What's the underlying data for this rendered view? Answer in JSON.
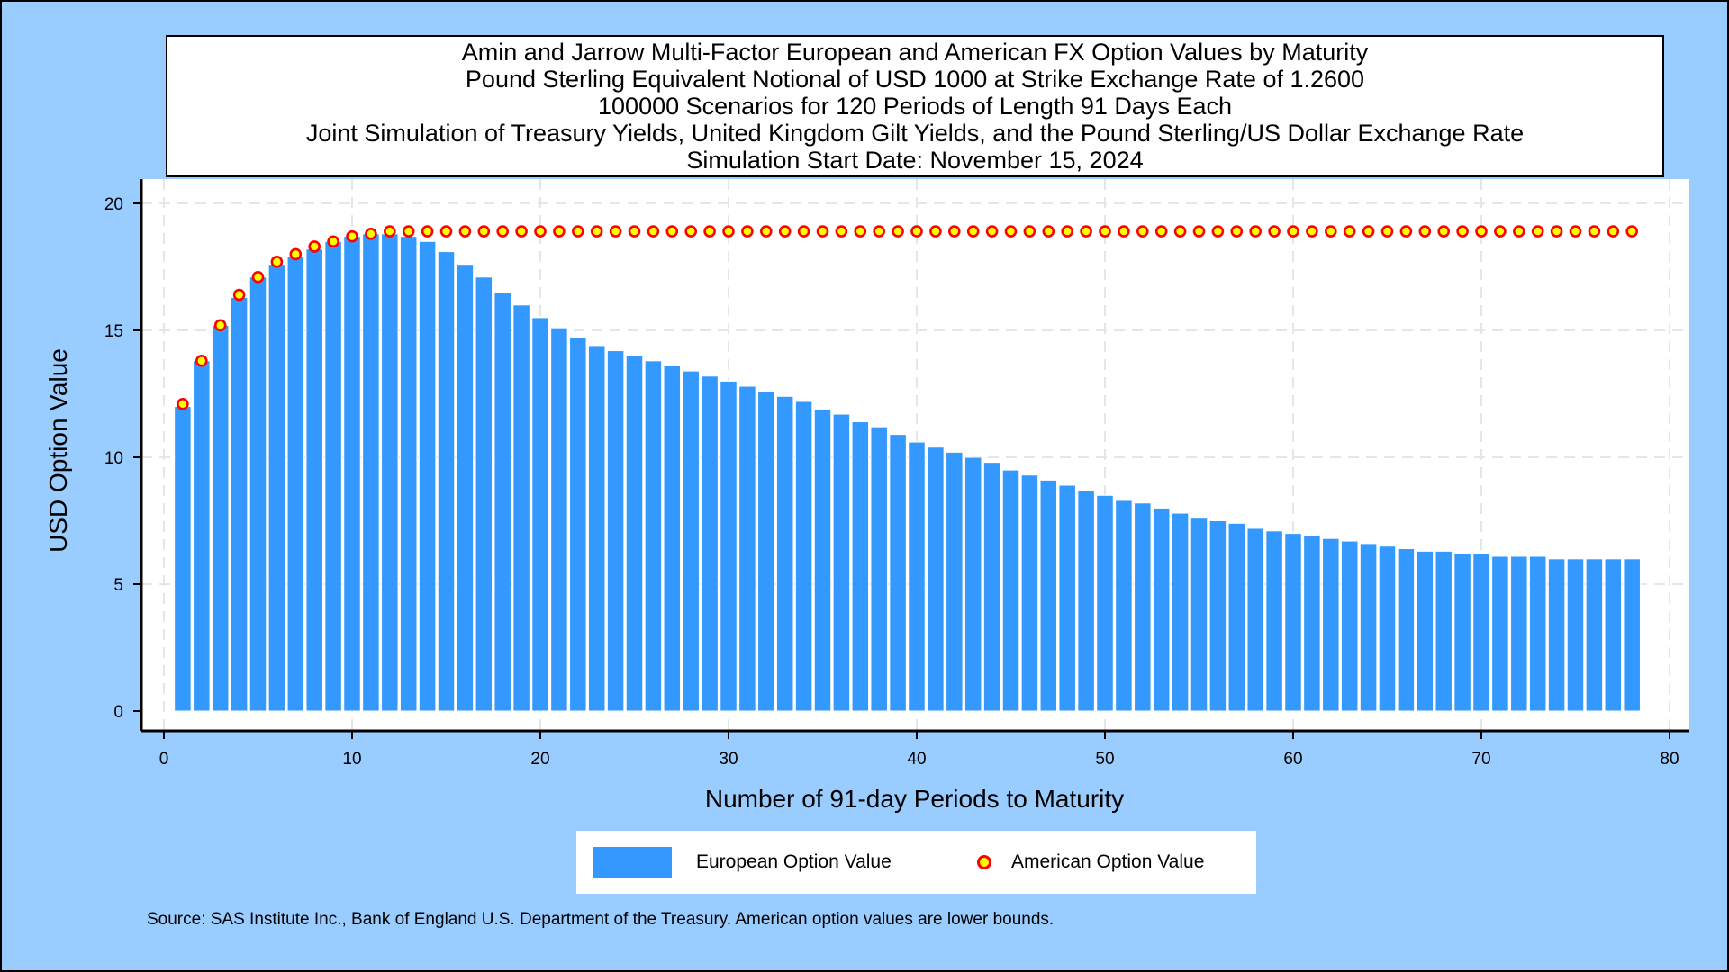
{
  "title_lines": [
    "Amin and Jarrow Multi-Factor European and American FX Option Values by Maturity",
    "Pound Sterling Equivalent Notional of USD 1000 at Strike Exchange Rate of  1.2600",
    "100000 Scenarios for 120 Periods of Length 91 Days Each",
    "Joint Simulation of Treasury Yields, United Kingdom Gilt Yields, and the Pound Sterling/US Dollar Exchange Rate",
    "Simulation Start Date: November 15, 2024"
  ],
  "legend": {
    "european": "European Option Value",
    "american": "American Option Value"
  },
  "footnote": "Source: SAS Institute Inc., Bank of England U.S. Department of the Treasury. American option values are lower bounds.",
  "colors": {
    "background": "#99CCFF",
    "bar": "#3399FF",
    "marker_fill": "#FFFF00",
    "marker_edge": "#FF0000",
    "grid": "#E6E6E6"
  },
  "chart_data": {
    "type": "bar",
    "xlabel": "Number of 91-day Periods to Maturity",
    "ylabel": "USD Option Value",
    "xlim": [
      0,
      80
    ],
    "ylim": [
      0,
      20
    ],
    "x_ticks": [
      0,
      10,
      20,
      30,
      40,
      50,
      60,
      70,
      80
    ],
    "y_ticks": [
      0,
      5,
      10,
      15,
      20
    ],
    "grid": true,
    "legend_position": "bottom",
    "x": [
      1,
      2,
      3,
      4,
      5,
      6,
      7,
      8,
      9,
      10,
      11,
      12,
      13,
      14,
      15,
      16,
      17,
      18,
      19,
      20,
      21,
      22,
      23,
      24,
      25,
      26,
      27,
      28,
      29,
      30,
      31,
      32,
      33,
      34,
      35,
      36,
      37,
      38,
      39,
      40,
      41,
      42,
      43,
      44,
      45,
      46,
      47,
      48,
      49,
      50,
      51,
      52,
      53,
      54,
      55,
      56,
      57,
      58,
      59,
      60,
      61,
      62,
      63,
      64,
      65,
      66,
      67,
      68,
      69,
      70,
      71,
      72,
      73,
      74,
      75,
      76,
      77,
      78
    ],
    "series": [
      {
        "name": "European Option Value",
        "type": "bar",
        "values": [
          12.0,
          13.8,
          15.2,
          16.3,
          17.1,
          17.6,
          17.9,
          18.2,
          18.5,
          18.7,
          18.8,
          18.8,
          18.7,
          18.5,
          18.1,
          17.6,
          17.1,
          16.5,
          16.0,
          15.5,
          15.1,
          14.7,
          14.4,
          14.2,
          14.0,
          13.8,
          13.6,
          13.4,
          13.2,
          13.0,
          12.8,
          12.6,
          12.4,
          12.2,
          11.9,
          11.7,
          11.4,
          11.2,
          10.9,
          10.6,
          10.4,
          10.2,
          10.0,
          9.8,
          9.5,
          9.3,
          9.1,
          8.9,
          8.7,
          8.5,
          8.3,
          8.2,
          8.0,
          7.8,
          7.6,
          7.5,
          7.4,
          7.2,
          7.1,
          7.0,
          6.9,
          6.8,
          6.7,
          6.6,
          6.5,
          6.4,
          6.3,
          6.3,
          6.2,
          6.2,
          6.1,
          6.1,
          6.1,
          6.0,
          6.0,
          6.0,
          6.0,
          6.0
        ]
      },
      {
        "name": "American Option Value",
        "type": "scatter",
        "values": [
          12.1,
          13.8,
          15.2,
          16.4,
          17.1,
          17.7,
          18.0,
          18.3,
          18.5,
          18.7,
          18.8,
          18.9,
          18.9,
          18.9,
          18.9,
          18.9,
          18.9,
          18.9,
          18.9,
          18.9,
          18.9,
          18.9,
          18.9,
          18.9,
          18.9,
          18.9,
          18.9,
          18.9,
          18.9,
          18.9,
          18.9,
          18.9,
          18.9,
          18.9,
          18.9,
          18.9,
          18.9,
          18.9,
          18.9,
          18.9,
          18.9,
          18.9,
          18.9,
          18.9,
          18.9,
          18.9,
          18.9,
          18.9,
          18.9,
          18.9,
          18.9,
          18.9,
          18.9,
          18.9,
          18.9,
          18.9,
          18.9,
          18.9,
          18.9,
          18.9,
          18.9,
          18.9,
          18.9,
          18.9,
          18.9,
          18.9,
          18.9,
          18.9,
          18.9,
          18.9,
          18.9,
          18.9,
          18.9,
          18.9,
          18.9,
          18.9,
          18.9,
          18.9
        ]
      }
    ]
  }
}
